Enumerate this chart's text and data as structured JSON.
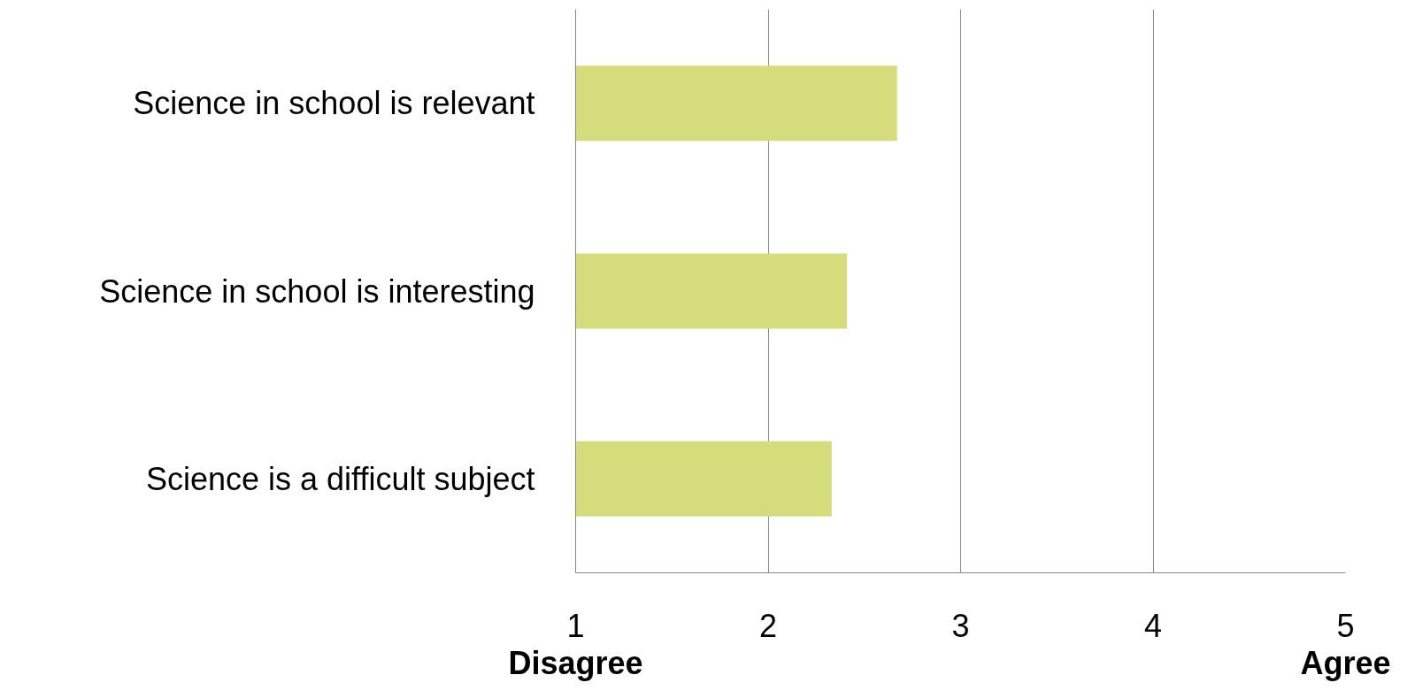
{
  "chart_data": {
    "type": "bar",
    "orientation": "horizontal",
    "categories": [
      "Science in school is relevant",
      "Science in school is interesting",
      "Science is a difficult subject"
    ],
    "values": [
      2.67,
      2.41,
      2.33
    ],
    "color": "#d4dc7c",
    "xlim": [
      1,
      5
    ],
    "xticks": [
      1,
      2,
      3,
      4,
      5
    ],
    "grid": "x",
    "annotations": [
      "Disagree",
      "Agree"
    ]
  }
}
